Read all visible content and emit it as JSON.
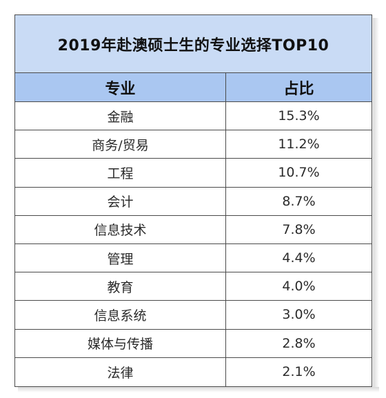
{
  "chart_data": {
    "type": "table",
    "title": "2019年赴澳硕士生的专业选择TOP10",
    "columns": [
      "专业",
      "占比"
    ],
    "rows": [
      {
        "major": "金融",
        "share": "15.3%",
        "value": 15.3
      },
      {
        "major": "商务/贸易",
        "share": "11.2%",
        "value": 11.2
      },
      {
        "major": "工程",
        "share": "10.7%",
        "value": 10.7
      },
      {
        "major": "会计",
        "share": "8.7%",
        "value": 8.7
      },
      {
        "major": "信息技术",
        "share": "7.8%",
        "value": 7.8
      },
      {
        "major": "管理",
        "share": "4.4%",
        "value": 4.4
      },
      {
        "major": "教育",
        "share": "4.0%",
        "value": 4.0
      },
      {
        "major": "信息系统",
        "share": "3.0%",
        "value": 3.0
      },
      {
        "major": "媒体与传播",
        "share": "2.8%",
        "value": 2.8
      },
      {
        "major": "法律",
        "share": "2.1%",
        "value": 2.1
      }
    ]
  },
  "colors": {
    "title_bg": "#c9dbf5",
    "header_bg": "#aac7f1",
    "border": "#4a4a4a"
  }
}
